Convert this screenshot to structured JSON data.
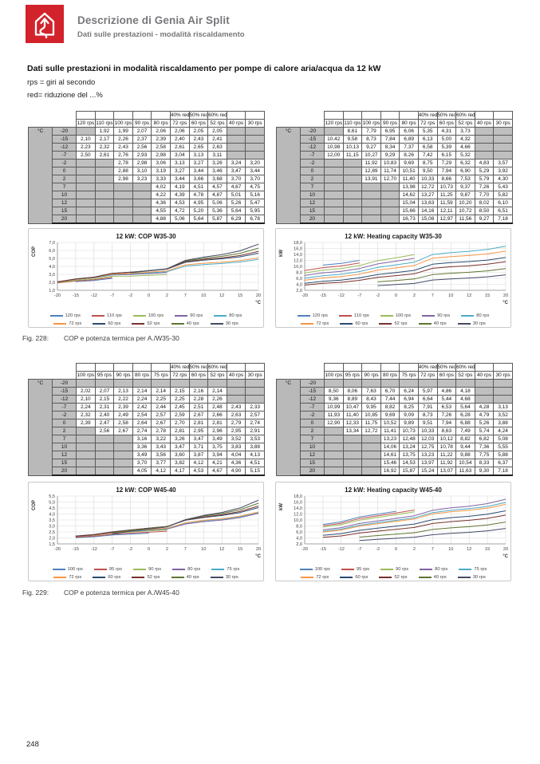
{
  "header": {
    "title": "Descrizione di Genia Air Split",
    "subtitle": "Dati sulle prestazioni - modalità riscaldamento",
    "logo_color": "#d2232c"
  },
  "intro": {
    "heading": "Dati sulle prestazioni in modalità riscaldamento per pompe di calore aria/acqua da 12 kW",
    "line1": "rps = giri al secondo",
    "line2": "red= riduzione del ...%"
  },
  "footer": {
    "page_number": "248"
  },
  "series_colors": [
    "#4F81BD",
    "#C0504D",
    "#9BBB59",
    "#8064A2",
    "#4BACC6",
    "#F79646",
    "#2A4A6F",
    "#77312C",
    "#5F7530",
    "#434A66"
  ],
  "figures": [
    {
      "caption": {
        "label": "Fig. 228:",
        "text": "COP e potenza termica per A./W35-30"
      },
      "tables": [
        {
          "unit_label": "°C",
          "red_headers": [
            "",
            "",
            "",
            "",
            "",
            "40% red",
            "50% red",
            "60% red",
            "",
            ""
          ],
          "columns": [
            "120 rps",
            "110 rps",
            "100 rps",
            "90 rps",
            "80 rps",
            "72 rps",
            "60 rps",
            "52 rps",
            "40 rps",
            "30 rps"
          ],
          "temps": [
            "-20",
            "-15",
            "-12",
            "-7",
            "-2",
            "0",
            "2",
            "7",
            "10",
            "12",
            "15",
            "20"
          ],
          "values": [
            [
              null,
              "1,92",
              "1,99",
              "2,07",
              "2,06",
              "2,06",
              "2,05",
              "2,05",
              null,
              null
            ],
            [
              "2,10",
              "2,17",
              "2,26",
              "2,37",
              "2,39",
              "2,40",
              "2,43",
              "2,41",
              null,
              null
            ],
            [
              "2,23",
              "2,32",
              "2,43",
              "2,56",
              "2,58",
              "2,61",
              "2,65",
              "2,63",
              null,
              null
            ],
            [
              "2,50",
              "2,61",
              "2,76",
              "2,93",
              "2,98",
              "3,04",
              "3,13",
              "3,11",
              null,
              null
            ],
            [
              null,
              null,
              "2,78",
              "2,98",
              "3,06",
              "3,13",
              "3,27",
              "3,26",
              "3,24",
              "3,20"
            ],
            [
              null,
              null,
              "2,88",
              "3,10",
              "3,19",
              "3,27",
              "3,44",
              "3,46",
              "3,47",
              "3,44"
            ],
            [
              null,
              null,
              "2,98",
              "3,23",
              "3,33",
              "3,44",
              "3,66",
              "3,68",
              "3,70",
              "3,70"
            ],
            [
              null,
              null,
              null,
              null,
              "4,02",
              "4,19",
              "4,51",
              "4,57",
              "4,67",
              "4,75"
            ],
            [
              null,
              null,
              null,
              null,
              "4,22",
              "4,39",
              "4,78",
              "4,87",
              "5,01",
              "5,16"
            ],
            [
              null,
              null,
              null,
              null,
              "4,36",
              "4,53",
              "4,95",
              "5,06",
              "5,26",
              "5,47"
            ],
            [
              null,
              null,
              null,
              null,
              "4,55",
              "4,72",
              "5,20",
              "5,36",
              "5,64",
              "5,95"
            ],
            [
              null,
              null,
              null,
              null,
              "4,88",
              "5,06",
              "5,64",
              "5,87",
              "6,29",
              "6,78"
            ]
          ]
        },
        {
          "unit_label": "°C",
          "red_headers": [
            "",
            "",
            "",
            "",
            "",
            "40% red",
            "50% red",
            "60% red",
            "",
            ""
          ],
          "columns": [
            "120 rps",
            "110 rps",
            "100 rps",
            "90 rps",
            "80 rps",
            "72 rps",
            "60 rps",
            "52 rps",
            "40 rps",
            "30 rps"
          ],
          "temps": [
            "-20",
            "-15",
            "-12",
            "-7",
            "-2",
            "0",
            "2",
            "7",
            "10",
            "12",
            "15",
            "20"
          ],
          "values": [
            [
              null,
              "8,61",
              "7,79",
              "6,95",
              "6,06",
              "5,35",
              "4,31",
              "3,73",
              null,
              null
            ],
            [
              "10,42",
              "9,58",
              "8,73",
              "7,84",
              "6,89",
              "6,13",
              "5,00",
              "4,32",
              null,
              null
            ],
            [
              "10,98",
              "10,13",
              "9,27",
              "8,34",
              "7,37",
              "6,58",
              "5,39",
              "4,66",
              null,
              null
            ],
            [
              "12,00",
              "11,15",
              "10,27",
              "9,29",
              "8,26",
              "7,42",
              "6,15",
              "5,32",
              null,
              null
            ],
            [
              null,
              null,
              "11,92",
              "10,83",
              "9,69",
              "8,75",
              "7,29",
              "6,32",
              "4,83",
              "3,57"
            ],
            [
              null,
              null,
              "12,89",
              "11,74",
              "10,51",
              "9,50",
              "7,94",
              "6,90",
              "5,29",
              "3,92"
            ],
            [
              null,
              null,
              "13,91",
              "12,70",
              "11,40",
              "10,33",
              "8,66",
              "7,53",
              "5,79",
              "4,30"
            ],
            [
              null,
              null,
              null,
              null,
              "13,98",
              "12,72",
              "10,73",
              "9,37",
              "7,26",
              "5,43"
            ],
            [
              null,
              null,
              null,
              null,
              "14,62",
              "13,27",
              "11,25",
              "9,87",
              "7,70",
              "5,82"
            ],
            [
              null,
              null,
              null,
              null,
              "15,04",
              "13,63",
              "11,59",
              "10,20",
              "8,02",
              "6,10"
            ],
            [
              null,
              null,
              null,
              null,
              "15,66",
              "14,16",
              "12,11",
              "10,72",
              "8,50",
              "6,51"
            ],
            [
              null,
              null,
              null,
              null,
              "16,73",
              "15,08",
              "12,97",
              "11,56",
              "9,27",
              "7,18"
            ]
          ]
        }
      ],
      "charts": [
        {
          "type": "line",
          "title": "12 kW: COP W35-30",
          "y_axis_label": "COP",
          "x_axis_label": "°C",
          "y_min": 1.0,
          "y_max": 7.0,
          "y_step": 1.0,
          "source_table": 0
        },
        {
          "type": "line",
          "title": "12 kW: Heating capacity W35-30",
          "y_axis_label": "kW",
          "x_axis_label": "°C",
          "y_min": 2.0,
          "y_max": 18.0,
          "y_step": 2.0,
          "source_table": 1
        }
      ]
    },
    {
      "caption": {
        "label": "Fig. 229:",
        "text": "COP e potenza termica per A./W45-40"
      },
      "tables": [
        {
          "unit_label": "°C",
          "red_headers": [
            "",
            "",
            "",
            "",
            "",
            "40% red",
            "50% red",
            "60% red",
            "",
            ""
          ],
          "columns": [
            "100 rps",
            "95 rps",
            "90 rps",
            "80 rps",
            "75 rps",
            "72 rps",
            "60 rps",
            "52 rps",
            "40 rps",
            "30 rps"
          ],
          "temps": [
            "-20",
            "-15",
            "-12",
            "-7",
            "-2",
            "0",
            "2",
            "7",
            "10",
            "12",
            "15",
            "20"
          ],
          "values": [
            [
              null,
              null,
              null,
              null,
              null,
              null,
              null,
              null,
              null,
              null
            ],
            [
              "2,02",
              "2,07",
              "2,13",
              "2,14",
              "2,14",
              "2,15",
              "2,16",
              "2,14",
              null,
              null
            ],
            [
              "2,10",
              "2,15",
              "2,22",
              "2,24",
              "2,25",
              "2,25",
              "2,28",
              "2,26",
              null,
              null
            ],
            [
              "2,24",
              "2,31",
              "2,39",
              "2,42",
              "2,44",
              "2,45",
              "2,51",
              "2,48",
              "2,43",
              "2,33"
            ],
            [
              "2,32",
              "2,40",
              "2,49",
              "2,54",
              "2,57",
              "2,59",
              "2,67",
              "2,66",
              "2,63",
              "2,57"
            ],
            [
              "2,39",
              "2,47",
              "2,58",
              "2,64",
              "2,67",
              "2,70",
              "2,81",
              "2,81",
              "2,79",
              "2,74"
            ],
            [
              null,
              "2,56",
              "2,67",
              "2,74",
              "2,78",
              "2,81",
              "2,95",
              "2,96",
              "2,95",
              "2,91"
            ],
            [
              null,
              null,
              null,
              "3,16",
              "3,22",
              "3,26",
              "3,47",
              "3,49",
              "3,52",
              "3,53"
            ],
            [
              null,
              null,
              null,
              "3,36",
              "3,43",
              "3,47",
              "3,71",
              "3,75",
              "3,83",
              "3,88"
            ],
            [
              null,
              null,
              null,
              "3,49",
              "3,56",
              "3,60",
              "3,87",
              "3,94",
              "4,04",
              "4,13"
            ],
            [
              null,
              null,
              null,
              "3,70",
              "3,77",
              "3,82",
              "4,12",
              "4,21",
              "4,36",
              "4,51"
            ],
            [
              null,
              null,
              null,
              "4,05",
              "4,12",
              "4,17",
              "4,53",
              "4,67",
              "4,90",
              "5,15"
            ]
          ]
        },
        {
          "unit_label": "°C",
          "red_headers": [
            "",
            "",
            "",
            "",
            "",
            "40% red",
            "50% red",
            "60% red",
            "",
            ""
          ],
          "columns": [
            "100 rps",
            "95 rps",
            "90 rps",
            "80 rps",
            "75 rps",
            "72 rps",
            "60 rps",
            "52 rps",
            "40 rps",
            "30 rps"
          ],
          "temps": [
            "-20",
            "-15",
            "-12",
            "-7",
            "-2",
            "0",
            "2",
            "7",
            "10",
            "12",
            "15",
            "20"
          ],
          "values": [
            [
              null,
              null,
              null,
              null,
              null,
              null,
              null,
              null,
              null,
              null
            ],
            [
              "8,50",
              "8,06",
              "7,63",
              "6,70",
              "6,24",
              "5,97",
              "4,86",
              "4,18",
              null,
              null
            ],
            [
              "9,36",
              "8,89",
              "8,43",
              "7,44",
              "6,94",
              "6,64",
              "5,44",
              "4,68",
              null,
              null
            ],
            [
              "10,99",
              "10,47",
              "9,95",
              "8,82",
              "8,25",
              "7,91",
              "6,53",
              "5,64",
              "4,28",
              "3,13"
            ],
            [
              "11,93",
              "11,40",
              "10,85",
              "9,69",
              "9,09",
              "8,73",
              "7,26",
              "6,28",
              "4,79",
              "3,52"
            ],
            [
              "12,90",
              "12,33",
              "11,75",
              "10,52",
              "9,89",
              "9,51",
              "7,94",
              "6,88",
              "5,26",
              "3,88"
            ],
            [
              null,
              "13,34",
              "12,72",
              "11,41",
              "10,73",
              "10,33",
              "8,63",
              "7,49",
              "5,74",
              "4,24"
            ],
            [
              null,
              null,
              null,
              "13,23",
              "12,48",
              "12,03",
              "10,12",
              "8,82",
              "6,82",
              "5,08"
            ],
            [
              null,
              null,
              null,
              "14,06",
              "13,24",
              "12,75",
              "10,78",
              "9,44",
              "7,36",
              "5,55"
            ],
            [
              null,
              null,
              null,
              "14,61",
              "13,75",
              "13,23",
              "11,22",
              "9,88",
              "7,75",
              "5,88"
            ],
            [
              null,
              null,
              null,
              "15,46",
              "14,53",
              "13,97",
              "11,92",
              "10,54",
              "8,33",
              "6,37"
            ],
            [
              null,
              null,
              null,
              "16,92",
              "15,87",
              "15,24",
              "13,07",
              "11,63",
              "9,30",
              "7,18"
            ]
          ]
        }
      ],
      "charts": [
        {
          "type": "line",
          "title": "12 kW: COP W45-40",
          "y_axis_label": "COP",
          "x_axis_label": "°C",
          "y_min": 1.5,
          "y_max": 5.5,
          "y_step": 0.5,
          "source_table": 0
        },
        {
          "type": "line",
          "title": "12 kW: Heating capacity W45-40",
          "y_axis_label": "kW",
          "x_axis_label": "°C",
          "y_min": 2.0,
          "y_max": 18.0,
          "y_step": 2.0,
          "source_table": 1
        }
      ]
    }
  ]
}
